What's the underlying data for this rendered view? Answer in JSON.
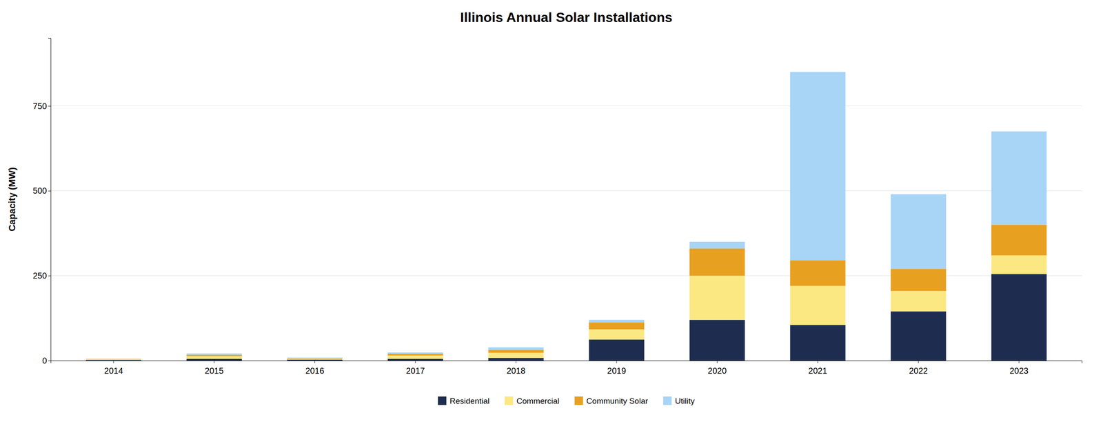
{
  "chart_data": {
    "type": "bar",
    "stacked": true,
    "title": "Illinois Annual Solar Installations",
    "ylabel": "Capacity (MW)",
    "categories": [
      "2014",
      "2015",
      "2016",
      "2017",
      "2018",
      "2019",
      "2020",
      "2021",
      "2022",
      "2023"
    ],
    "series": [
      {
        "name": "Residential",
        "color": "#1e2d4f",
        "values": [
          2,
          5,
          3,
          5,
          8,
          62,
          120,
          105,
          145,
          255
        ]
      },
      {
        "name": "Commercial",
        "color": "#fce882",
        "values": [
          2,
          8,
          3,
          10,
          15,
          30,
          130,
          115,
          60,
          55
        ]
      },
      {
        "name": "Community Solar",
        "color": "#e8a020",
        "values": [
          1,
          4,
          2,
          5,
          8,
          20,
          80,
          75,
          65,
          90
        ]
      },
      {
        "name": "Utility",
        "color": "#a8d4f5",
        "values": [
          0,
          4,
          1,
          4,
          8,
          8,
          20,
          555,
          220,
          275
        ]
      }
    ],
    "ylim": [
      0,
      950
    ],
    "yticks": [
      0,
      250,
      500,
      750
    ],
    "grid": true,
    "legend": "bottom"
  }
}
